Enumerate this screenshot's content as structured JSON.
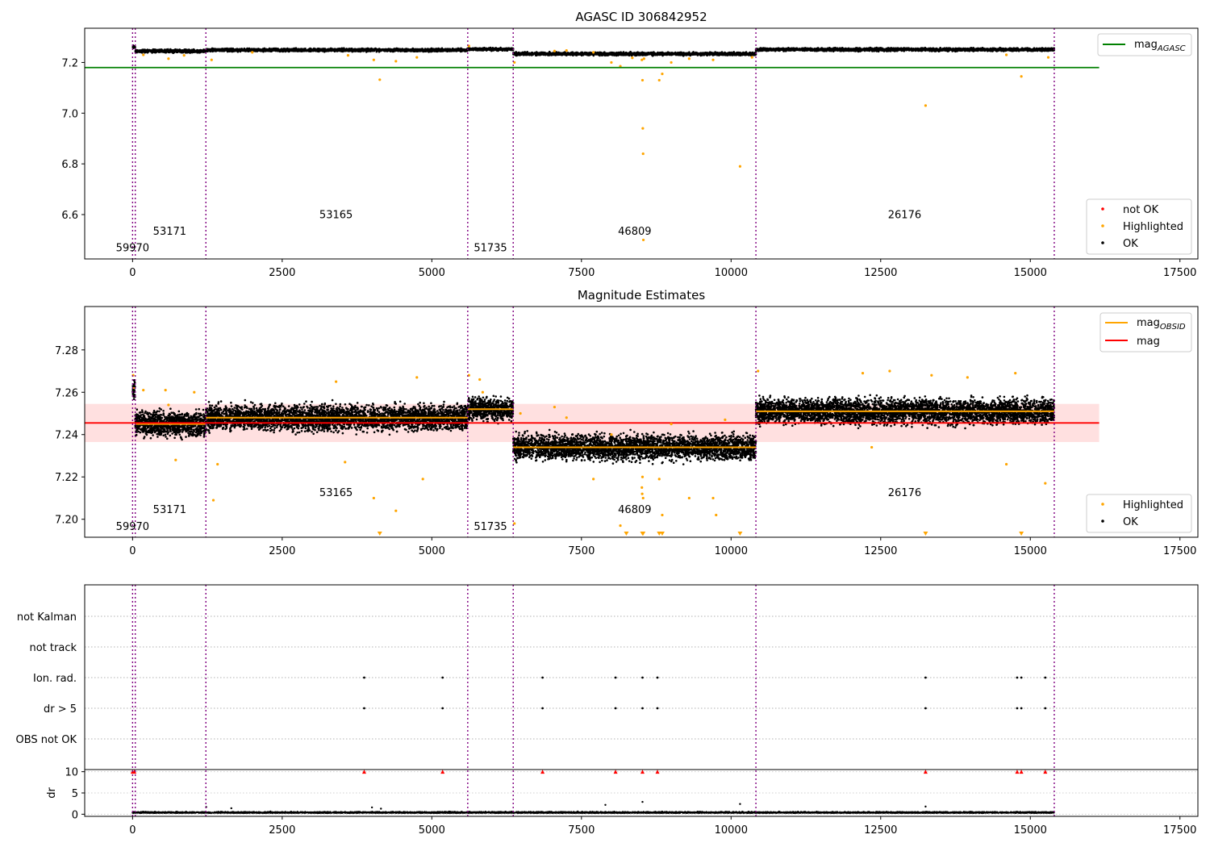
{
  "chart_data": [
    {
      "type": "scatter",
      "title": "AGASC ID 306842952",
      "xlim": [
        -800,
        17800
      ],
      "ylim": [
        6.425,
        7.335
      ],
      "xticks": [
        0,
        2500,
        5000,
        7500,
        10000,
        12500,
        15000,
        17500
      ],
      "yticks": [
        6.6,
        6.8,
        7.0,
        7.2
      ],
      "ytick_format": 1,
      "grid": false,
      "legend_top": {
        "position": "top-right",
        "entries": [
          {
            "label": "mag",
            "sub": "AGASC",
            "color": "#008000",
            "style": "line"
          }
        ]
      },
      "legend_bottom": {
        "position": "bottom-right",
        "entries": [
          {
            "label": "not OK",
            "color": "#ff0000",
            "style": "point"
          },
          {
            "label": "Highlighted",
            "color": "#ffa500",
            "style": "point"
          },
          {
            "label": "OK",
            "color": "#000000",
            "style": "point"
          }
        ]
      },
      "agasc_mag": {
        "value": 7.18,
        "x_range": [
          -800,
          16150
        ],
        "color": "#008000"
      },
      "obsid_boundaries": [
        0,
        45,
        1225,
        5600,
        6360,
        10415,
        15400
      ],
      "obsid_labels": [
        {
          "text": "59970",
          "x": 0,
          "y": 6.455
        },
        {
          "text": "53171",
          "x": 620,
          "y": 6.52
        },
        {
          "text": "53165",
          "x": 3400,
          "y": 6.585
        },
        {
          "text": "51735",
          "x": 5980,
          "y": 6.455
        },
        {
          "text": "46809",
          "x": 8390,
          "y": 6.52
        },
        {
          "text": "26176",
          "x": 12900,
          "y": 6.585
        }
      ],
      "ok_segments": [
        {
          "x": [
            0,
            45
          ],
          "y": 7.261,
          "spread": 0.01
        },
        {
          "x": [
            45,
            1225
          ],
          "y": 7.245,
          "spread": 0.009
        },
        {
          "x": [
            1225,
            5600
          ],
          "y": 7.249,
          "spread": 0.009
        },
        {
          "x": [
            5600,
            6360
          ],
          "y": 7.252,
          "spread": 0.008
        },
        {
          "x": [
            6360,
            10415
          ],
          "y": 7.234,
          "spread": 0.009
        },
        {
          "x": [
            10415,
            15400
          ],
          "y": 7.251,
          "spread": 0.009
        }
      ],
      "highlighted_points": [
        [
          180,
          7.23
        ],
        [
          600,
          7.215
        ],
        [
          860,
          7.228
        ],
        [
          1320,
          7.21
        ],
        [
          2000,
          7.24
        ],
        [
          3600,
          7.228
        ],
        [
          4030,
          7.21
        ],
        [
          4130,
          7.132
        ],
        [
          4400,
          7.205
        ],
        [
          4750,
          7.22
        ],
        [
          5620,
          7.265
        ],
        [
          6380,
          7.2
        ],
        [
          7050,
          7.245
        ],
        [
          7250,
          7.247
        ],
        [
          7700,
          7.24
        ],
        [
          8000,
          7.2
        ],
        [
          8150,
          7.185
        ],
        [
          8350,
          7.218
        ],
        [
          8510,
          7.21
        ],
        [
          8520,
          7.13
        ],
        [
          8525,
          6.94
        ],
        [
          8530,
          6.84
        ],
        [
          8535,
          6.5
        ],
        [
          8545,
          7.215
        ],
        [
          8800,
          7.13
        ],
        [
          8850,
          7.155
        ],
        [
          9000,
          7.2
        ],
        [
          9300,
          7.215
        ],
        [
          9700,
          7.21
        ],
        [
          10150,
          6.79
        ],
        [
          10350,
          7.22
        ],
        [
          13250,
          7.03
        ],
        [
          14600,
          7.23
        ],
        [
          14850,
          7.145
        ],
        [
          15300,
          7.22
        ]
      ],
      "not_ok_points": []
    },
    {
      "type": "scatter",
      "title": "Magnitude Estimates",
      "xlim": [
        -800,
        17800
      ],
      "ylim": [
        7.1915,
        7.3005
      ],
      "xticks": [
        0,
        2500,
        5000,
        7500,
        10000,
        12500,
        15000,
        17500
      ],
      "yticks": [
        7.2,
        7.22,
        7.24,
        7.26,
        7.28
      ],
      "ytick_format": 2,
      "grid": false,
      "legend_top": {
        "position": "top-right",
        "entries": [
          {
            "label": "mag",
            "sub": "OBSID",
            "color": "#ffa500",
            "style": "line"
          },
          {
            "label": "mag",
            "sub": "",
            "color": "#ff0000",
            "style": "line"
          }
        ]
      },
      "legend_bottom": {
        "position": "bottom-right",
        "entries": [
          {
            "label": "Highlighted",
            "color": "#ffa500",
            "style": "point"
          },
          {
            "label": "OK",
            "color": "#000000",
            "style": "point"
          }
        ]
      },
      "mean_mag": {
        "value": 7.2455,
        "band": [
          7.2365,
          7.2545
        ],
        "x_range": [
          -800,
          16150
        ],
        "color": "#ff0000"
      },
      "obsid_mags": [
        {
          "x": [
            0,
            45
          ],
          "y": 7.262
        },
        {
          "x": [
            45,
            1225
          ],
          "y": 7.245
        },
        {
          "x": [
            1225,
            5600
          ],
          "y": 7.248
        },
        {
          "x": [
            5600,
            6360
          ],
          "y": 7.252
        },
        {
          "x": [
            6360,
            10415
          ],
          "y": 7.234
        },
        {
          "x": [
            10415,
            15400
          ],
          "y": 7.251
        }
      ],
      "obsid_boundaries": [
        0,
        45,
        1225,
        5600,
        6360,
        10415,
        15400
      ],
      "obsid_labels": [
        {
          "text": "59970",
          "x": 0,
          "y": 7.195
        },
        {
          "text": "53171",
          "x": 620,
          "y": 7.203
        },
        {
          "text": "53165",
          "x": 3400,
          "y": 7.211
        },
        {
          "text": "51735",
          "x": 5980,
          "y": 7.195
        },
        {
          "text": "46809",
          "x": 8390,
          "y": 7.203
        },
        {
          "text": "26176",
          "x": 12900,
          "y": 7.211
        }
      ],
      "ok_segments": [
        {
          "x": [
            0,
            45
          ],
          "y": 7.262,
          "spread": 0.008
        },
        {
          "x": [
            45,
            1225
          ],
          "y": 7.245,
          "spread": 0.009
        },
        {
          "x": [
            1225,
            5600
          ],
          "y": 7.248,
          "spread": 0.009
        },
        {
          "x": [
            5600,
            6360
          ],
          "y": 7.252,
          "spread": 0.008
        },
        {
          "x": [
            6360,
            10415
          ],
          "y": 7.234,
          "spread": 0.009
        },
        {
          "x": [
            10415,
            15400
          ],
          "y": 7.251,
          "spread": 0.009
        }
      ],
      "highlighted_points": [
        [
          10,
          7.268
        ],
        [
          180,
          7.261
        ],
        [
          550,
          7.261
        ],
        [
          600,
          7.254
        ],
        [
          720,
          7.228
        ],
        [
          1030,
          7.26
        ],
        [
          1350,
          7.209
        ],
        [
          1420,
          7.226
        ],
        [
          3400,
          7.265
        ],
        [
          3550,
          7.227
        ],
        [
          4030,
          7.21
        ],
        [
          4400,
          7.204
        ],
        [
          4750,
          7.267
        ],
        [
          4850,
          7.219
        ],
        [
          5620,
          7.268
        ],
        [
          5800,
          7.266
        ],
        [
          5850,
          7.26
        ],
        [
          6380,
          7.198
        ],
        [
          6480,
          7.25
        ],
        [
          7050,
          7.253
        ],
        [
          7250,
          7.248
        ],
        [
          7700,
          7.219
        ],
        [
          8000,
          7.24
        ],
        [
          8150,
          7.197
        ],
        [
          8510,
          7.215
        ],
        [
          8515,
          7.212
        ],
        [
          8520,
          7.22
        ],
        [
          8530,
          7.21
        ],
        [
          8800,
          7.219
        ],
        [
          8850,
          7.202
        ],
        [
          9000,
          7.245
        ],
        [
          9300,
          7.21
        ],
        [
          9700,
          7.21
        ],
        [
          9750,
          7.202
        ],
        [
          9900,
          7.247
        ],
        [
          10450,
          7.27
        ],
        [
          12200,
          7.269
        ],
        [
          12350,
          7.234
        ],
        [
          12650,
          7.27
        ],
        [
          13350,
          7.268
        ],
        [
          13950,
          7.267
        ],
        [
          14600,
          7.226
        ],
        [
          14750,
          7.269
        ],
        [
          15250,
          7.217
        ]
      ],
      "clipped_points_x": [
        4130,
        8250,
        8520,
        8530,
        8800,
        8850,
        10150,
        13250,
        14850
      ]
    },
    {
      "type": "scatter",
      "title": "",
      "xlim": [
        -800,
        17800
      ],
      "xticks": [
        0,
        2500,
        5000,
        7500,
        10000,
        12500,
        15000,
        17500
      ],
      "flag_rows": [
        "not Kalman",
        "not track",
        "Ion. rad.",
        "dr > 5",
        "OBS not OK"
      ],
      "flag_points": {
        "not Kalman": [],
        "not track": [],
        "Ion. rad.": [
          3870,
          5180,
          6850,
          8070,
          8520,
          8770,
          13250,
          14780,
          14850,
          15250
        ],
        "dr > 5": [
          3870,
          5180,
          6850,
          8070,
          8520,
          8770,
          13250,
          14780,
          14850,
          15250
        ],
        "OBS not OK": []
      },
      "obsid_boundaries": [
        0,
        45,
        1225,
        5600,
        6360,
        10415,
        15400
      ],
      "dr_panel": {
        "ylabel": "dr",
        "ylim": [
          -0.5,
          10.5
        ],
        "yticks": [
          0,
          5,
          10
        ],
        "clipped_x": [
          0,
          30,
          3870,
          5180,
          6850,
          8070,
          8520,
          8770,
          13250,
          14780,
          14850,
          15250
        ],
        "outliers": [
          [
            1230,
            1.7
          ],
          [
            1650,
            1.4
          ],
          [
            4000,
            1.6
          ],
          [
            4150,
            1.3
          ],
          [
            7900,
            2.2
          ],
          [
            8520,
            2.9
          ],
          [
            10150,
            2.4
          ],
          [
            13250,
            1.8
          ]
        ],
        "baseline": {
          "x": [
            0,
            15400
          ],
          "y": 0.3,
          "spread": 0.35
        }
      }
    }
  ]
}
